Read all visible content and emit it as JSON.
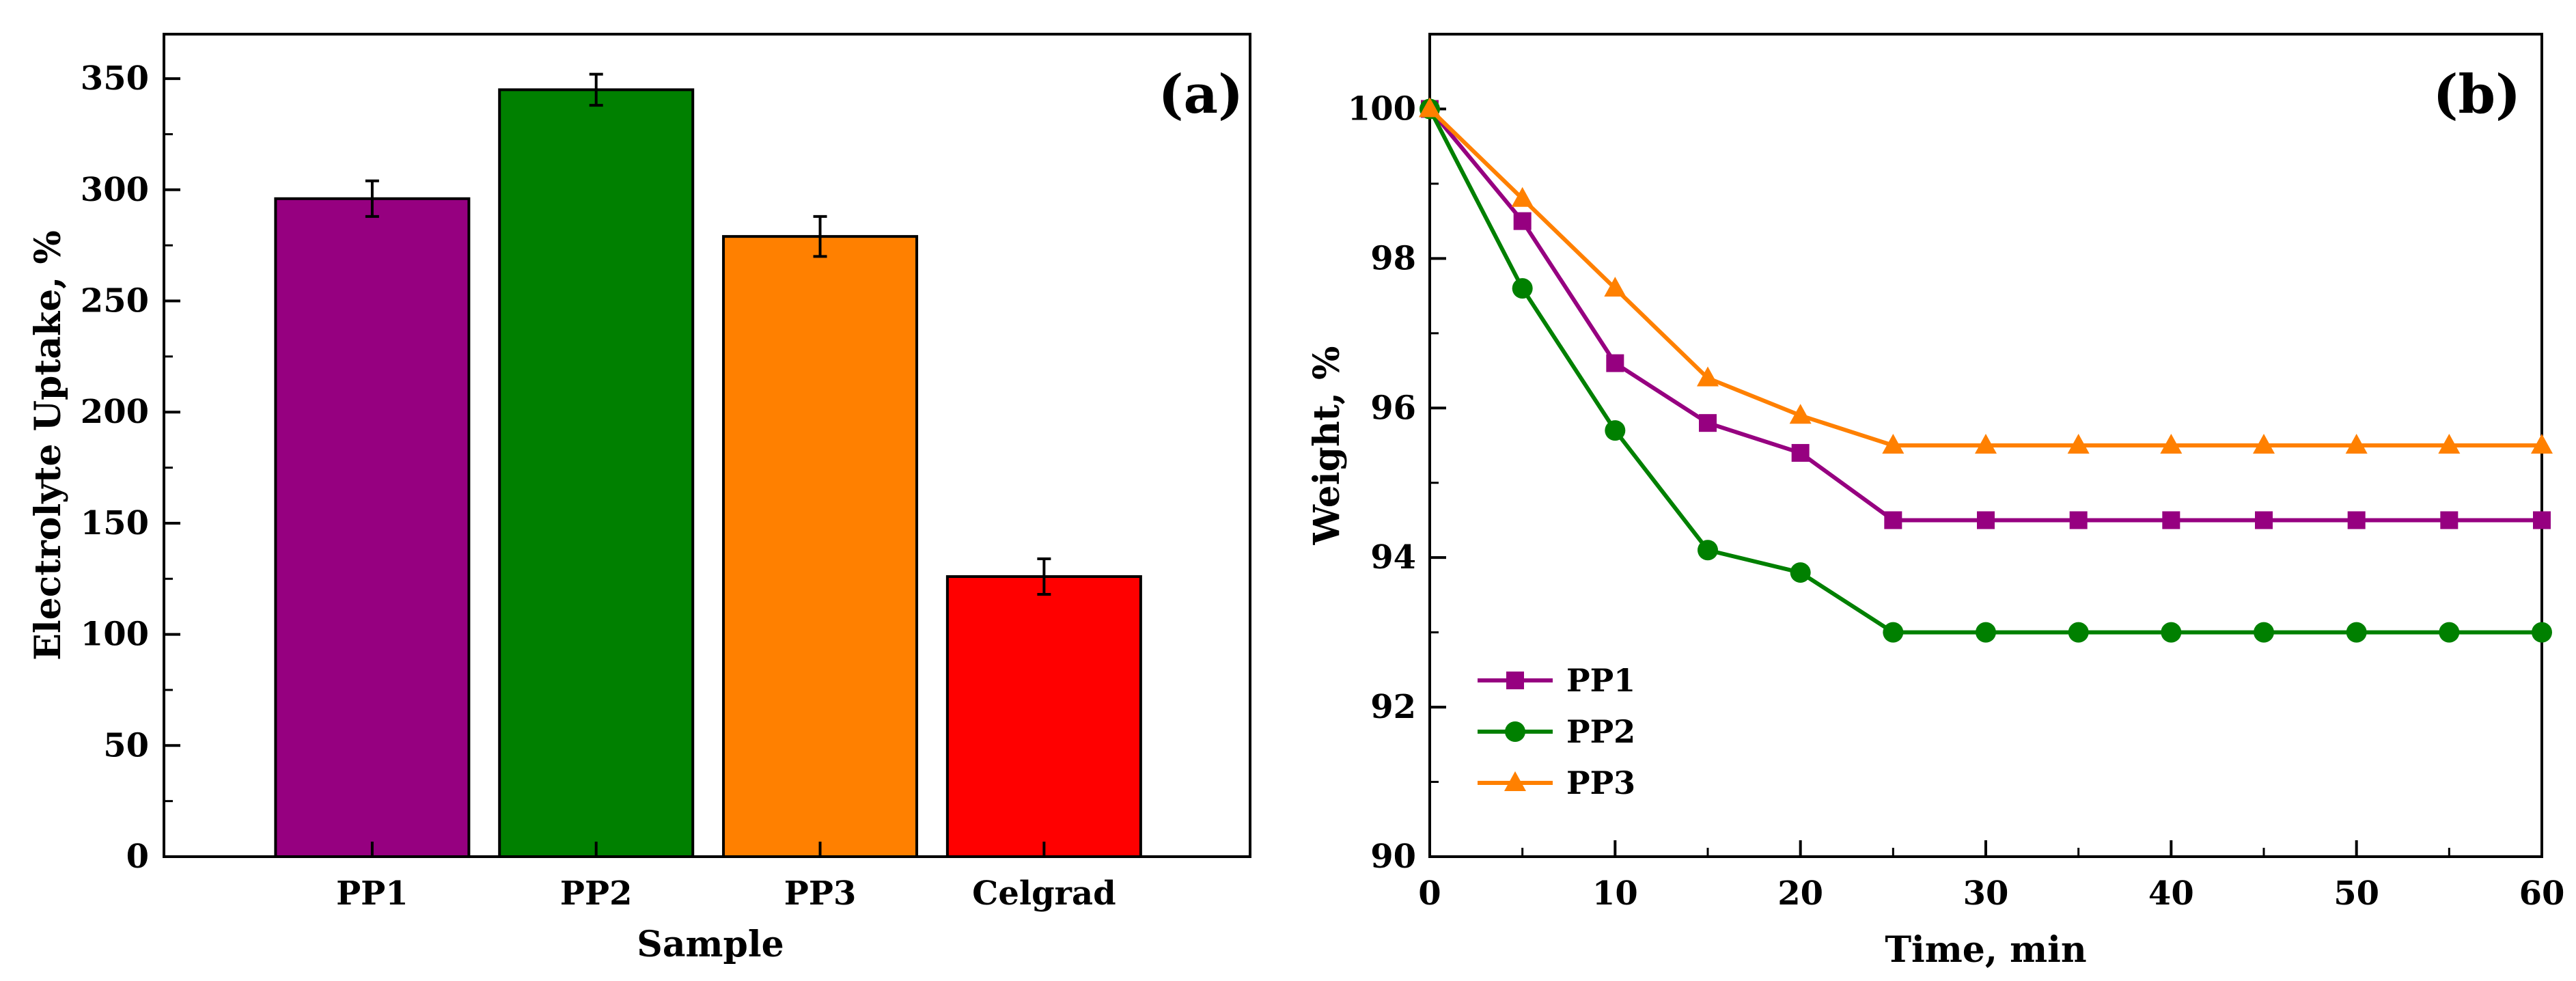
{
  "chart_data": [
    {
      "type": "bar",
      "panel_label": "(a)",
      "xlabel": "Sample",
      "ylabel": "Electrolyte Uptake, %",
      "ylim": [
        0,
        370
      ],
      "yticks": [
        0,
        50,
        100,
        150,
        200,
        250,
        300,
        350
      ],
      "categories": [
        "PP1",
        "PP2",
        "PP3",
        "Celgrad"
      ],
      "values": [
        296,
        345,
        279,
        126
      ],
      "errors": [
        8,
        7,
        9,
        8
      ],
      "colors": [
        "#960080",
        "#008000",
        "#ff8000",
        "#ff0000"
      ]
    },
    {
      "type": "line",
      "panel_label": "(b)",
      "xlabel": "Time, min",
      "ylabel": "Weight, %",
      "xlim": [
        0,
        60
      ],
      "ylim": [
        90,
        101
      ],
      "xticks": [
        0,
        10,
        20,
        30,
        40,
        50,
        60
      ],
      "yticks": [
        90,
        92,
        94,
        96,
        98,
        100
      ],
      "x": [
        0,
        5,
        10,
        15,
        20,
        25,
        30,
        35,
        40,
        45,
        50,
        55,
        60
      ],
      "legend_position": "bottom-left",
      "series": [
        {
          "name": "PP1",
          "marker": "square",
          "color": "#960080",
          "values": [
            100,
            98.5,
            96.6,
            95.8,
            95.4,
            94.5,
            94.5,
            94.5,
            94.5,
            94.5,
            94.5,
            94.5,
            94.5
          ]
        },
        {
          "name": "PP2",
          "marker": "circle",
          "color": "#008000",
          "values": [
            100,
            97.6,
            95.7,
            94.1,
            93.8,
            93.0,
            93.0,
            93.0,
            93.0,
            93.0,
            93.0,
            93.0,
            93.0
          ]
        },
        {
          "name": "PP3",
          "marker": "triangle",
          "color": "#ff8000",
          "values": [
            100,
            98.8,
            97.6,
            96.4,
            95.9,
            95.5,
            95.5,
            95.5,
            95.5,
            95.5,
            95.5,
            95.5,
            95.5
          ]
        }
      ]
    }
  ]
}
